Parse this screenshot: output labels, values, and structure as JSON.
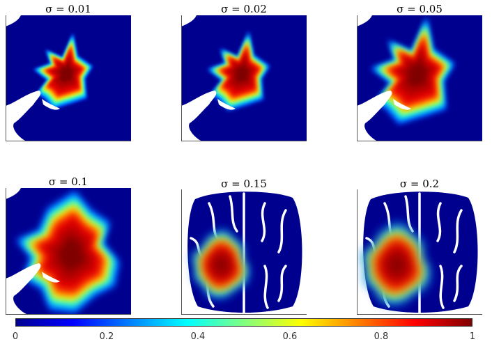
{
  "panels": [
    {
      "sigma_label": "σ = 0.01",
      "sigma": 0.01,
      "view": "zoom"
    },
    {
      "sigma_label": "σ = 0.02",
      "sigma": 0.02,
      "view": "zoom"
    },
    {
      "sigma_label": "σ = 0.05",
      "sigma": 0.05,
      "view": "zoom"
    },
    {
      "sigma_label": "σ = 0.1",
      "sigma": 0.1,
      "view": "zoom"
    },
    {
      "sigma_label": "σ = 0.15",
      "sigma": 0.15,
      "view": "brain"
    },
    {
      "sigma_label": "σ = 0.2",
      "sigma": 0.2,
      "view": "brain"
    }
  ],
  "colorbar": {
    "colormap": "jet",
    "ticks": [
      "0",
      "0.2",
      "0.4",
      "0.6",
      "0.8",
      "1"
    ]
  },
  "colors": {
    "background_dark_blue": "#00008f",
    "core_dark_red": "#800000"
  }
}
